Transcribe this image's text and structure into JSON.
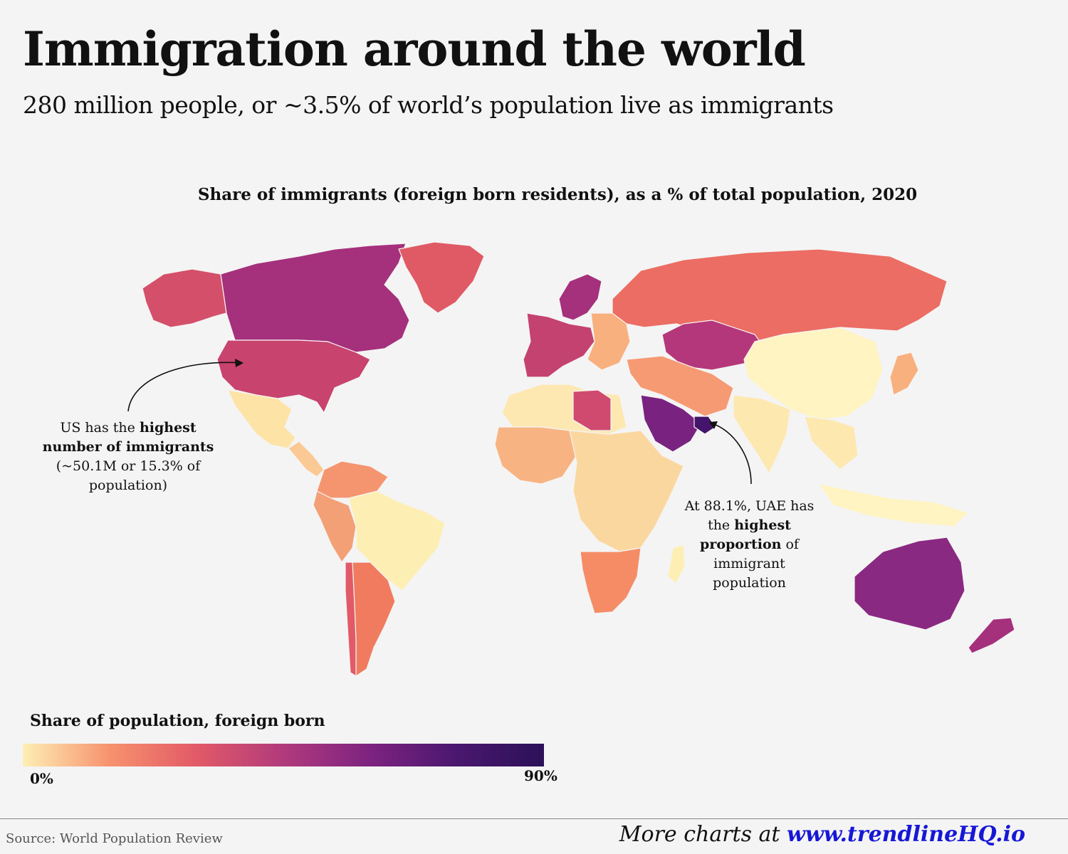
{
  "header": {
    "title": "Immigration around the world",
    "subtitle": "280 million people, or ~3.5% of world’s population live as immigrants"
  },
  "map": {
    "title": "Share of immigrants (foreign born residents), as a % of total population, 2020",
    "color_scale": [
      "#fdefb4",
      "#f7926e",
      "#e25a67",
      "#b13a7c",
      "#7d2380",
      "#4a176f",
      "#2b1158"
    ],
    "regions": {
      "canada": "#a5307c",
      "usa": "#c8436e",
      "alaska": "#d4506a",
      "greenland": "#e05a66",
      "mexico": "#fde3a6",
      "central_america": "#fbc994",
      "south_america_north": "#f5956f",
      "brazil": "#fdefb4",
      "andes": "#f4a077",
      "argentina": "#f07b5e",
      "chile": "#e25a67",
      "russia": "#ec6d63",
      "kazakhstan": "#b5377b",
      "china": "#fff4c2",
      "india": "#fde8b0",
      "iran_region": "#f69a73",
      "saudi_arabia": "#79227f",
      "uae": "#44156b",
      "north_africa": "#fde8b2",
      "libya": "#cf4a6e",
      "west_africa": "#f7b482",
      "central_africa": "#fbd7a0",
      "southern_africa": "#f58c66",
      "europe_west": "#c4426f",
      "scandinavia": "#a5307c",
      "eastern_europe": "#f8b07e",
      "se_asia": "#fde8b0",
      "indonesia": "#fff4c2",
      "australia": "#8a2981",
      "new_zealand": "#a5307c",
      "japan": "#f8b07e",
      "madagascar": "#fdefb4"
    }
  },
  "annotations": {
    "us": {
      "line1_pre": "US has the ",
      "line1_bold": "highest",
      "line2_bold": "number of immigrants",
      "line3": "(~50.1M or 15.3% of",
      "line4": "population)"
    },
    "uae": {
      "line1": "At 88.1%, UAE has",
      "line2_pre": "the ",
      "line2_bold": "highest",
      "line3_bold": "proportion",
      "line3_post": " of",
      "line4": "immigrant",
      "line5": "population"
    }
  },
  "legend": {
    "title": "Share of population, foreign born",
    "min_label": "0%",
    "max_label": "90%"
  },
  "footer": {
    "source": "Source: World Population Review",
    "more_prefix": "More charts at ",
    "more_url": "www.trendlineHQ.io"
  }
}
